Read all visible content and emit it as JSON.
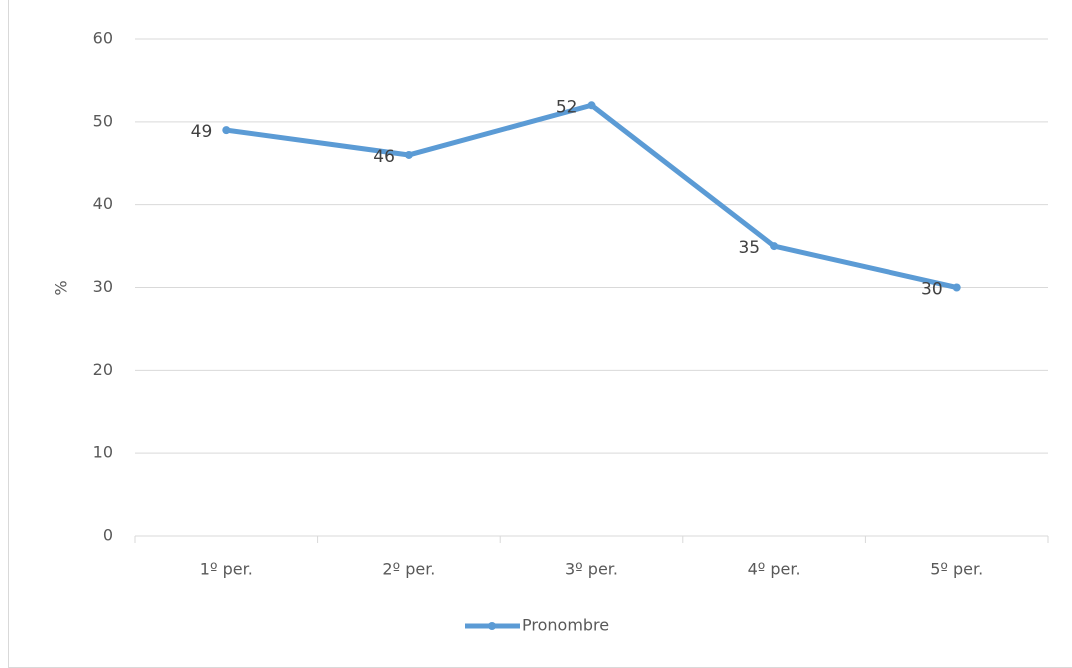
{
  "chart_data": {
    "type": "line",
    "categories": [
      "1º per.",
      "2º per.",
      "3º per.",
      "4º per.",
      "5º per."
    ],
    "series": [
      {
        "name": "Pronombre",
        "color": "#5b9bd5",
        "values": [
          49,
          46,
          52,
          35,
          30
        ]
      }
    ],
    "y_label": "%",
    "ylim": [
      0,
      60
    ],
    "yticks": [
      0,
      10,
      20,
      30,
      40,
      50,
      60
    ],
    "grid": true,
    "legend": "bottom"
  }
}
